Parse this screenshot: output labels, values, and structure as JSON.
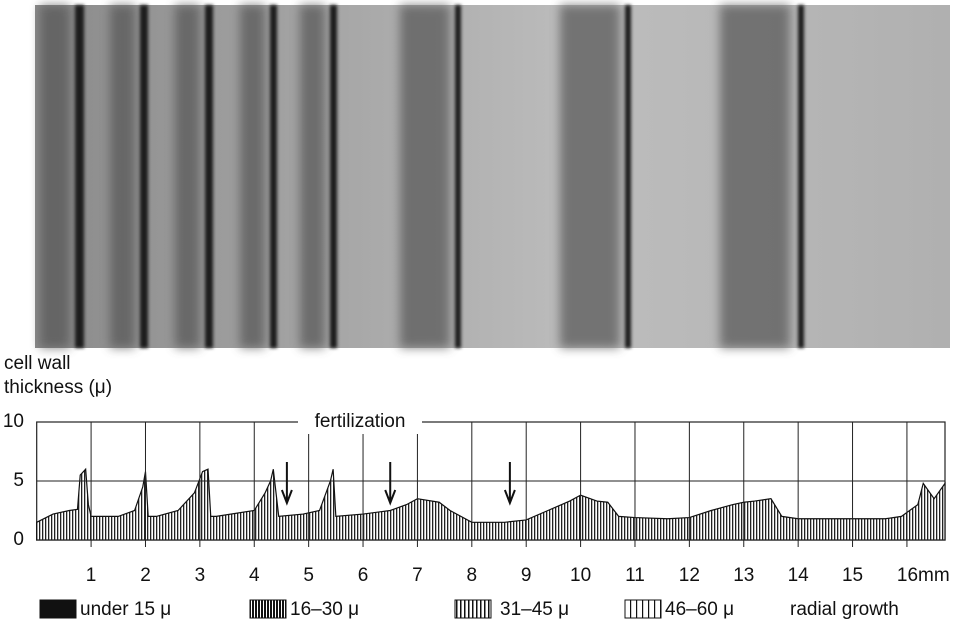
{
  "chart_data": {
    "type": "area",
    "ylabel": [
      "cell wall",
      "thickness (μ)"
    ],
    "xlabel": "radial growth",
    "annotation": {
      "text": "fertilization",
      "arrows_x": [
        4.6,
        6.5,
        8.7
      ]
    },
    "x": [
      0,
      0.3,
      0.6,
      0.75,
      0.8,
      0.9,
      0.95,
      1.0,
      1.5,
      1.8,
      1.95,
      2.0,
      2.05,
      2.2,
      2.6,
      2.9,
      3.05,
      3.15,
      3.2,
      3.3,
      4.0,
      4.2,
      4.3,
      4.35,
      4.45,
      4.9,
      5.2,
      5.4,
      5.45,
      5.5,
      6.0,
      6.5,
      6.8,
      7.0,
      7.4,
      7.6,
      8.0,
      8.6,
      9.0,
      9.4,
      9.8,
      10.0,
      10.3,
      10.5,
      10.7,
      11.0,
      11.6,
      12.0,
      12.4,
      12.8,
      13.0,
      13.2,
      13.5,
      13.7,
      14.0,
      14.5,
      14.8,
      15.2,
      15.6,
      15.9,
      16.2,
      16.3,
      16.5,
      16.7
    ],
    "values": [
      1.5,
      2.2,
      2.5,
      2.6,
      5.5,
      6.0,
      3.0,
      2.0,
      2.0,
      2.5,
      4.5,
      5.8,
      2.0,
      2.0,
      2.5,
      4.0,
      5.8,
      6.0,
      2.0,
      2.0,
      2.5,
      4.0,
      5.0,
      6.0,
      2.0,
      2.2,
      2.5,
      5.0,
      6.0,
      2.0,
      2.2,
      2.5,
      3.0,
      3.5,
      3.2,
      2.5,
      1.5,
      1.5,
      1.7,
      2.5,
      3.3,
      3.8,
      3.3,
      3.2,
      2.0,
      1.9,
      1.8,
      1.9,
      2.5,
      3.0,
      3.2,
      3.3,
      3.5,
      2.0,
      1.8,
      1.8,
      1.8,
      1.8,
      1.8,
      2.0,
      3.0,
      4.8,
      3.5,
      4.8
    ],
    "xlim": [
      0,
      16.7
    ],
    "xticks": [
      1,
      2,
      3,
      4,
      5,
      6,
      7,
      8,
      9,
      10,
      11,
      12,
      13,
      14,
      15,
      {
        "value": 16,
        "label": "16mm"
      }
    ],
    "ylim": [
      0,
      10
    ],
    "yticks": [
      0,
      5,
      10
    ],
    "grid": true,
    "legend": [
      "under 15 μ",
      "16–30 μ",
      "31–45 μ",
      "46–60 μ"
    ]
  }
}
